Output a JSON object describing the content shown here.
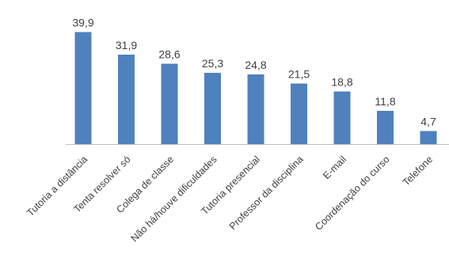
{
  "chart_data": {
    "type": "bar",
    "categories": [
      "Tutoria a distância",
      "Tenta resolver só",
      "Colega de classe",
      "Não há/houve dificuldades",
      "Tutoria presencial",
      "Professor da disciplina",
      "E-mail",
      "Coordenação do curso",
      "Telefone"
    ],
    "values": [
      39.9,
      31.9,
      28.6,
      25.3,
      24.8,
      21.5,
      18.8,
      11.8,
      4.7
    ],
    "data_labels": [
      "39,9",
      "31,9",
      "28,6",
      "25,3",
      "24,8",
      "21,5",
      "18,8",
      "11,8",
      "4,7"
    ],
    "title": "",
    "xlabel": "",
    "ylabel": "",
    "ylim": [
      0,
      40
    ],
    "grid": false,
    "legend": "none",
    "bar_color": "#4f81bd",
    "axis_color": "#bfbfbf",
    "label_color": "#404040"
  }
}
